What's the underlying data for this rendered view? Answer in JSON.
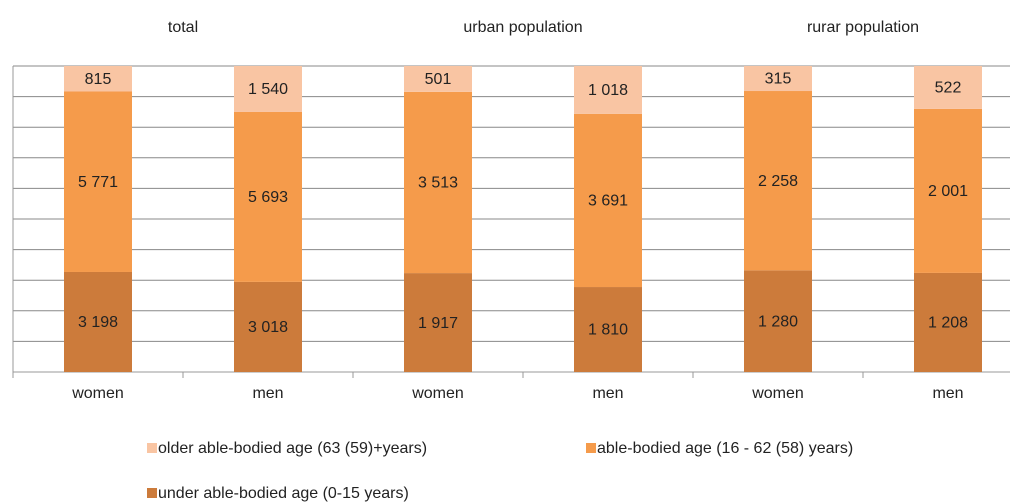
{
  "chart_data": {
    "type": "stacked_percent_bar",
    "group_labels": [
      "total",
      "urban population",
      "rurar population"
    ],
    "categories": [
      "women",
      "men",
      "women",
      "men",
      "women",
      "men"
    ],
    "series": [
      {
        "name": "older able-bodied age (63 (59)+years)",
        "color": "#f9c5a3",
        "values": [
          815,
          1540,
          501,
          1018,
          315,
          522
        ],
        "value_labels": [
          "815",
          "1 540",
          "501",
          "1 018",
          "315",
          "522"
        ]
      },
      {
        "name": "able-bodied age (16 - 62 (58) years)",
        "color": "#f59b4b",
        "values": [
          5771,
          5693,
          3513,
          3691,
          2258,
          2001
        ],
        "value_labels": [
          "5 771",
          "5 693",
          "3 513",
          "3 691",
          "2 258",
          "2 001"
        ]
      },
      {
        "name": "under able-bodied age (0-15 years)",
        "color": "#cc7b3b",
        "values": [
          3198,
          3018,
          1917,
          1810,
          1280,
          1208
        ],
        "value_labels": [
          "3 198",
          "3 018",
          "1 917",
          "1 810",
          "1 280",
          "1 208"
        ]
      }
    ],
    "ylim": [
      0,
      100
    ],
    "yticks": [
      0,
      10,
      20,
      30,
      40,
      50,
      60,
      70,
      80,
      90,
      100
    ],
    "grid": true
  }
}
